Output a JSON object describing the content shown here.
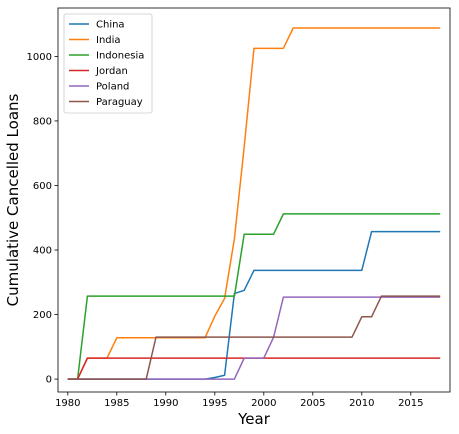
{
  "chart_data": {
    "type": "line",
    "xlabel": "Year",
    "ylabel": "Cumulative Cancelled Loans",
    "xlim": [
      1979,
      2019
    ],
    "ylim": [
      -40,
      1150
    ],
    "xticks": [
      1980,
      1985,
      1990,
      1995,
      2000,
      2005,
      2010,
      2015
    ],
    "yticks": [
      0,
      200,
      400,
      600,
      800,
      1000
    ],
    "grid": false,
    "legend_position": "top-left",
    "series": [
      {
        "name": "China",
        "color": "#1f77b4",
        "points": [
          [
            1980,
            0
          ],
          [
            1981,
            0
          ],
          [
            1982,
            0
          ],
          [
            1983,
            0
          ],
          [
            1984,
            0
          ],
          [
            1985,
            0
          ],
          [
            1990,
            0
          ],
          [
            1994,
            0
          ],
          [
            1995,
            5
          ],
          [
            1996,
            12
          ],
          [
            1997,
            265
          ],
          [
            1998,
            275
          ],
          [
            1999,
            337
          ],
          [
            2000,
            337
          ],
          [
            2005,
            337
          ],
          [
            2009,
            337
          ],
          [
            2010,
            337
          ],
          [
            2011,
            457
          ],
          [
            2012,
            457
          ],
          [
            2015,
            457
          ],
          [
            2018,
            457
          ]
        ]
      },
      {
        "name": "India",
        "color": "#ff7f0e",
        "points": [
          [
            1980,
            0
          ],
          [
            1981,
            0
          ],
          [
            1982,
            65
          ],
          [
            1983,
            65
          ],
          [
            1984,
            65
          ],
          [
            1985,
            128
          ],
          [
            1990,
            128
          ],
          [
            1994,
            128
          ],
          [
            1995,
            195
          ],
          [
            1996,
            250
          ],
          [
            1997,
            435
          ],
          [
            1998,
            720
          ],
          [
            1999,
            1025
          ],
          [
            2000,
            1025
          ],
          [
            2002,
            1025
          ],
          [
            2003,
            1088
          ],
          [
            2005,
            1088
          ],
          [
            2010,
            1088
          ],
          [
            2015,
            1088
          ],
          [
            2018,
            1088
          ]
        ]
      },
      {
        "name": "Indonesia",
        "color": "#2ca02c",
        "points": [
          [
            1980,
            0
          ],
          [
            1981,
            0
          ],
          [
            1982,
            257
          ],
          [
            1985,
            257
          ],
          [
            1990,
            257
          ],
          [
            1995,
            257
          ],
          [
            1997,
            257
          ],
          [
            1998,
            449
          ],
          [
            2000,
            449
          ],
          [
            2001,
            449
          ],
          [
            2002,
            512
          ],
          [
            2005,
            512
          ],
          [
            2010,
            512
          ],
          [
            2015,
            512
          ],
          [
            2018,
            512
          ]
        ]
      },
      {
        "name": "Jordan",
        "color": "#d62728",
        "points": [
          [
            1980,
            0
          ],
          [
            1981,
            0
          ],
          [
            1982,
            65
          ],
          [
            1985,
            65
          ],
          [
            1990,
            65
          ],
          [
            1995,
            65
          ],
          [
            2000,
            65
          ],
          [
            2005,
            65
          ],
          [
            2010,
            65
          ],
          [
            2015,
            65
          ],
          [
            2018,
            65
          ]
        ]
      },
      {
        "name": "Poland",
        "color": "#9467bd",
        "points": [
          [
            1980,
            0
          ],
          [
            1985,
            0
          ],
          [
            1990,
            0
          ],
          [
            1995,
            0
          ],
          [
            1997,
            0
          ],
          [
            1998,
            65
          ],
          [
            1999,
            65
          ],
          [
            2000,
            65
          ],
          [
            2001,
            130
          ],
          [
            2002,
            254
          ],
          [
            2005,
            254
          ],
          [
            2010,
            254
          ],
          [
            2015,
            254
          ],
          [
            2018,
            254
          ]
        ]
      },
      {
        "name": "Paraguay",
        "color": "#8c564b",
        "points": [
          [
            1980,
            0
          ],
          [
            1985,
            0
          ],
          [
            1988,
            0
          ],
          [
            1989,
            130
          ],
          [
            1990,
            130
          ],
          [
            1995,
            130
          ],
          [
            2000,
            130
          ],
          [
            2005,
            130
          ],
          [
            2009,
            130
          ],
          [
            2010,
            193
          ],
          [
            2011,
            193
          ],
          [
            2012,
            257
          ],
          [
            2015,
            257
          ],
          [
            2018,
            257
          ]
        ]
      }
    ]
  }
}
